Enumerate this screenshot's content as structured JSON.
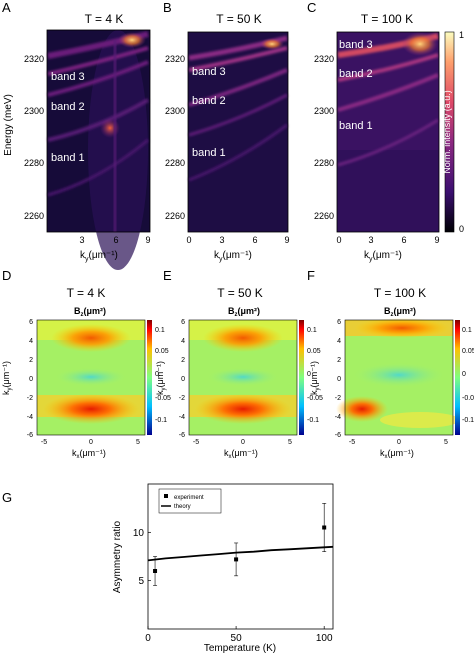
{
  "panels": {
    "A": "A",
    "B": "B",
    "C": "C",
    "D": "D",
    "E": "E",
    "F": "F",
    "G": "G"
  },
  "spectra": {
    "titles": [
      "T = 4 K",
      "T = 50 K",
      "T = 100 K"
    ],
    "ylabel": "Energy (meV)",
    "xlabel": "k",
    "xlabel_sub": "y",
    "xlabel_unit": "(μm⁻¹)",
    "yticks": [
      "2260",
      "2280",
      "2300",
      "2320"
    ],
    "xticks_a": [
      "3",
      "6",
      "9"
    ],
    "xticks_bc": [
      "0",
      "3",
      "6",
      "9"
    ],
    "band_labels": [
      "band 3",
      "band 2",
      "band 1"
    ],
    "colorbar_label": "Norm. intensity (a.u.)",
    "colorbar_ticks": [
      "1",
      "0"
    ],
    "colors": [
      "#000004",
      "#3b0f70",
      "#8c2981",
      "#de4968",
      "#fe9f6d",
      "#fcfdbf"
    ]
  },
  "fields": {
    "titles": [
      "T = 4 K",
      "T = 50 K",
      "T = 100 K"
    ],
    "map_label": "B",
    "map_label_sub": "z",
    "map_label_unit": "(μm²)",
    "ylabel": "k",
    "ylabel_sub": "y",
    "ylabel_unit": "(μm⁻¹)",
    "xlabel": "k",
    "xlabel_sub": "x",
    "xlabel_unit": "(μm⁻¹)",
    "yticks": [
      "6",
      "4",
      "2",
      "0",
      "-2",
      "-4",
      "-6"
    ],
    "xticks": [
      "-5",
      "0",
      "5"
    ],
    "colorbar_ticks": [
      "0.1",
      "0.05",
      "0",
      "-0.05",
      "-0.1"
    ],
    "colors": [
      "#00008f",
      "#00ffff",
      "#80ff80",
      "#ffff00",
      "#ff0000",
      "#800000"
    ]
  },
  "chart_data": {
    "type": "scatter",
    "xlabel": "Temperature (K)",
    "ylabel": "Asymmetry ratio",
    "xlim": [
      0,
      105
    ],
    "ylim": [
      0,
      15
    ],
    "xticks": [
      0,
      50,
      100
    ],
    "yticks": [
      5,
      10
    ],
    "legend_position": "top-left",
    "series": [
      {
        "name": "experiment",
        "kind": "points",
        "x": [
          4,
          50,
          100
        ],
        "y": [
          6.0,
          7.2,
          10.5
        ],
        "err": [
          1.5,
          1.7,
          2.5
        ]
      },
      {
        "name": "theory",
        "kind": "line",
        "x": [
          0,
          10,
          20,
          30,
          40,
          50,
          60,
          70,
          80,
          90,
          100,
          105
        ],
        "y": [
          7.1,
          7.3,
          7.45,
          7.6,
          7.75,
          7.9,
          8.0,
          8.15,
          8.25,
          8.35,
          8.45,
          8.5
        ]
      }
    ]
  }
}
